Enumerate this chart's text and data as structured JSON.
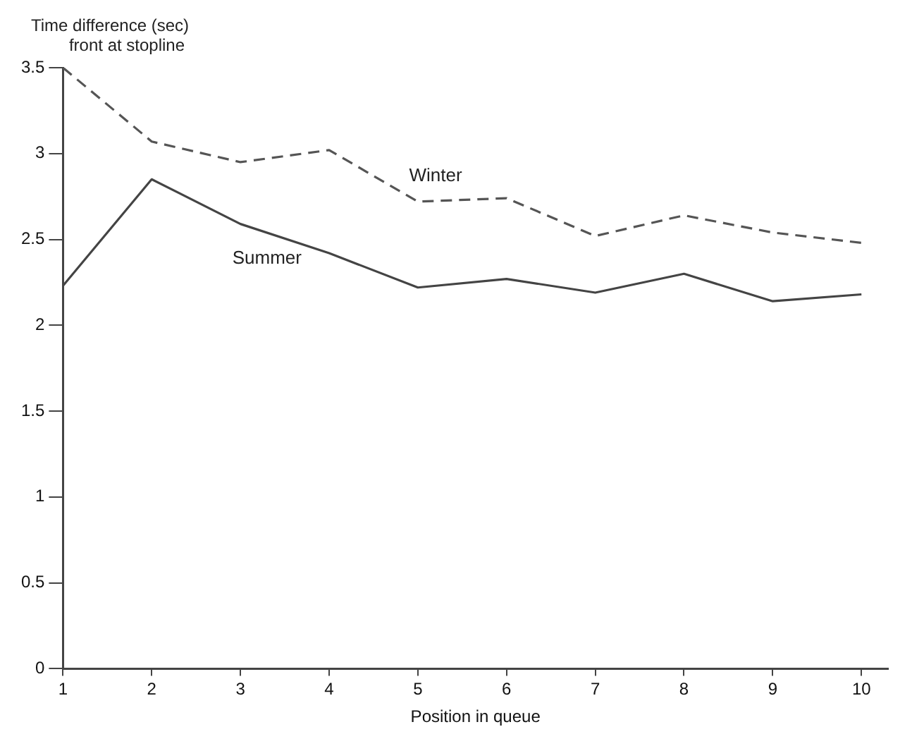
{
  "chart_data": {
    "type": "line",
    "ylabel": "Time difference (sec)\nfront at stopline",
    "xlabel": "Position in queue",
    "x": [
      1,
      2,
      3,
      4,
      5,
      6,
      7,
      8,
      9,
      10
    ],
    "series": [
      {
        "name": "Winter",
        "color": "#555555",
        "line_style": "dashed",
        "values": [
          3.5,
          3.07,
          2.95,
          3.02,
          2.72,
          2.74,
          2.52,
          2.64,
          2.54,
          2.48
        ]
      },
      {
        "name": "Summer",
        "color": "#444444",
        "line_style": "solid",
        "values": [
          2.23,
          2.85,
          2.59,
          2.42,
          2.22,
          2.27,
          2.19,
          2.3,
          2.14,
          2.18
        ]
      }
    ],
    "xlim": [
      1,
      10.3
    ],
    "xticks": [
      1,
      2,
      3,
      4,
      5,
      6,
      7,
      8,
      9,
      10
    ],
    "ylim": [
      0,
      3.5
    ],
    "yticks": [
      0,
      0.5,
      1,
      1.5,
      2,
      2.5,
      3,
      3.5
    ],
    "grid": false,
    "legend": false,
    "marker": "none"
  }
}
